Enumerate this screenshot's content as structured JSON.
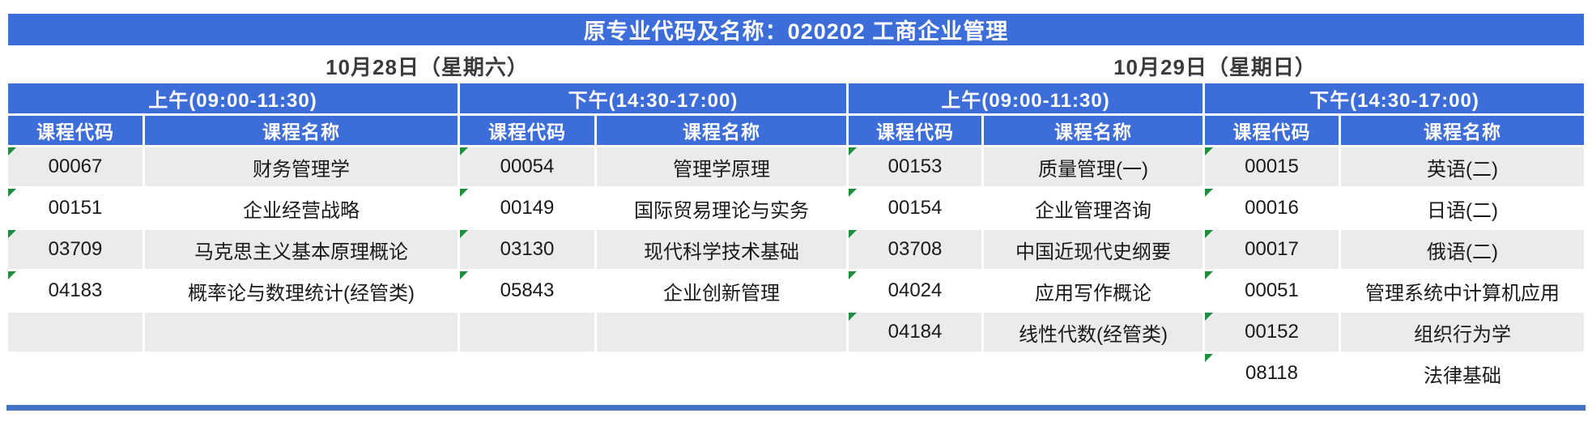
{
  "title": "原专业代码及名称：020202 工商企业管理",
  "column_headers": {
    "code": "课程代码",
    "name": "课程名称"
  },
  "days": [
    {
      "date_label": "10月28日（星期六）"
    },
    {
      "date_label": "10月29日（星期日）"
    }
  ],
  "sessions": [
    {
      "label": "上午(09:00-11:30)",
      "day": 0,
      "empty_rows": 1,
      "courses": [
        {
          "code": "00067",
          "name": "财务管理学"
        },
        {
          "code": "00151",
          "name": "企业经营战略"
        },
        {
          "code": "03709",
          "name": "马克思主义基本原理概论"
        },
        {
          "code": "04183",
          "name": "概率论与数理统计(经管类)"
        }
      ]
    },
    {
      "label": "下午(14:30-17:00)",
      "day": 0,
      "empty_rows": 1,
      "courses": [
        {
          "code": "00054",
          "name": "管理学原理"
        },
        {
          "code": "00149",
          "name": "国际贸易理论与实务"
        },
        {
          "code": "03130",
          "name": "现代科学技术基础"
        },
        {
          "code": "05843",
          "name": "企业创新管理"
        }
      ]
    },
    {
      "label": "上午(09:00-11:30)",
      "day": 1,
      "empty_rows": 0,
      "courses": [
        {
          "code": "00153",
          "name": "质量管理(一)"
        },
        {
          "code": "00154",
          "name": "企业管理咨询"
        },
        {
          "code": "03708",
          "name": "中国近现代史纲要"
        },
        {
          "code": "04024",
          "name": "应用写作概论"
        },
        {
          "code": "04184",
          "name": "线性代数(经管类)"
        }
      ]
    },
    {
      "label": "下午(14:30-17:00)",
      "day": 1,
      "empty_rows": 0,
      "courses": [
        {
          "code": "00015",
          "name": "英语(二)"
        },
        {
          "code": "00016",
          "name": "日语(二)"
        },
        {
          "code": "00017",
          "name": "俄语(二)"
        },
        {
          "code": "00051",
          "name": "管理系统中计算机应用"
        },
        {
          "code": "00152",
          "name": "组织行为学"
        },
        {
          "code": "08118",
          "name": "法律基础"
        }
      ]
    }
  ],
  "colors": {
    "header_blue": "#3d6dd8",
    "row_gray": "#ebebeb",
    "bottom_rule_blue": "#4472c4",
    "flag_green": "#1e8e3e"
  }
}
